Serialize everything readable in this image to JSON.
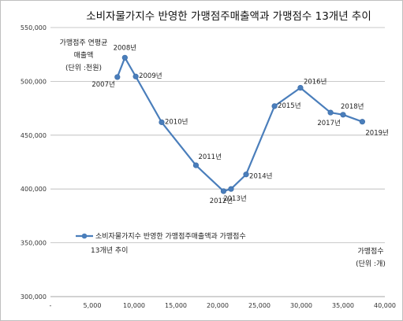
{
  "chart_data": {
    "type": "scatter",
    "title": "소비자물가지수 반영한 가맹점주매출액과 가맹점수 13개년 추이",
    "ylabel_lines": [
      "가맹점주 연평균",
      "매출액",
      "(단위 :천원)"
    ],
    "xlabel_lines": [
      "가맹점수",
      "(단위 :개)"
    ],
    "xlim": [
      0,
      40000
    ],
    "ylim": [
      300000,
      550000
    ],
    "x_ticks": [
      0,
      5000,
      10000,
      15000,
      20000,
      25000,
      30000,
      35000,
      40000
    ],
    "x_tick_labels": [
      "-",
      "5,000",
      "10,000",
      "15,000",
      "20,000",
      "25,000",
      "30,000",
      "35,000",
      "40,000"
    ],
    "y_ticks": [
      300000,
      350000,
      400000,
      450000,
      500000,
      550000
    ],
    "y_tick_labels": [
      "300,000",
      "350,000",
      "400,000",
      "450,000",
      "500,000",
      "550,000"
    ],
    "grid": "horizontal",
    "legend": {
      "position": "lower-left",
      "lines": [
        "소비자물가지수 반영한 가맹점주매출액과 가맹점수",
        "13개년 추이"
      ]
    },
    "series": [
      {
        "name": "소비자물가지수 반영한 가맹점주매출액과 가맹점수 13개년 추이",
        "color": "#4a7ebb",
        "points": [
          {
            "label": "2007년",
            "x": 8000,
            "y": 504000
          },
          {
            "label": "2008년",
            "x": 8900,
            "y": 522000
          },
          {
            "label": "2009년",
            "x": 10200,
            "y": 504500
          },
          {
            "label": "2010년",
            "x": 13300,
            "y": 462000
          },
          {
            "label": "2011년",
            "x": 17400,
            "y": 422000
          },
          {
            "label": "2012년",
            "x": 20700,
            "y": 398000
          },
          {
            "label": "2013년",
            "x": 21600,
            "y": 400000
          },
          {
            "label": "2014년",
            "x": 23400,
            "y": 413500
          },
          {
            "label": "2015년",
            "x": 26800,
            "y": 477000
          },
          {
            "label": "2016년",
            "x": 29900,
            "y": 494000
          },
          {
            "label": "2017년",
            "x": 33500,
            "y": 471000
          },
          {
            "label": "2018년",
            "x": 35000,
            "y": 469000
          },
          {
            "label": "2019년",
            "x": 37300,
            "y": 462500
          }
        ]
      }
    ]
  }
}
